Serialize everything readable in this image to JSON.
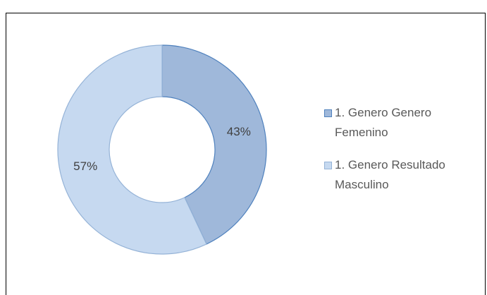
{
  "chart_data": {
    "type": "donut",
    "categories": [
      "1. Genero Genero Femenino",
      "1. Genero Resultado Masculino"
    ],
    "values": [
      43,
      57
    ],
    "value_labels": [
      "43%",
      "57%"
    ],
    "colors": [
      "#9fb8da",
      "#c6d9f0"
    ],
    "legend": "right"
  }
}
